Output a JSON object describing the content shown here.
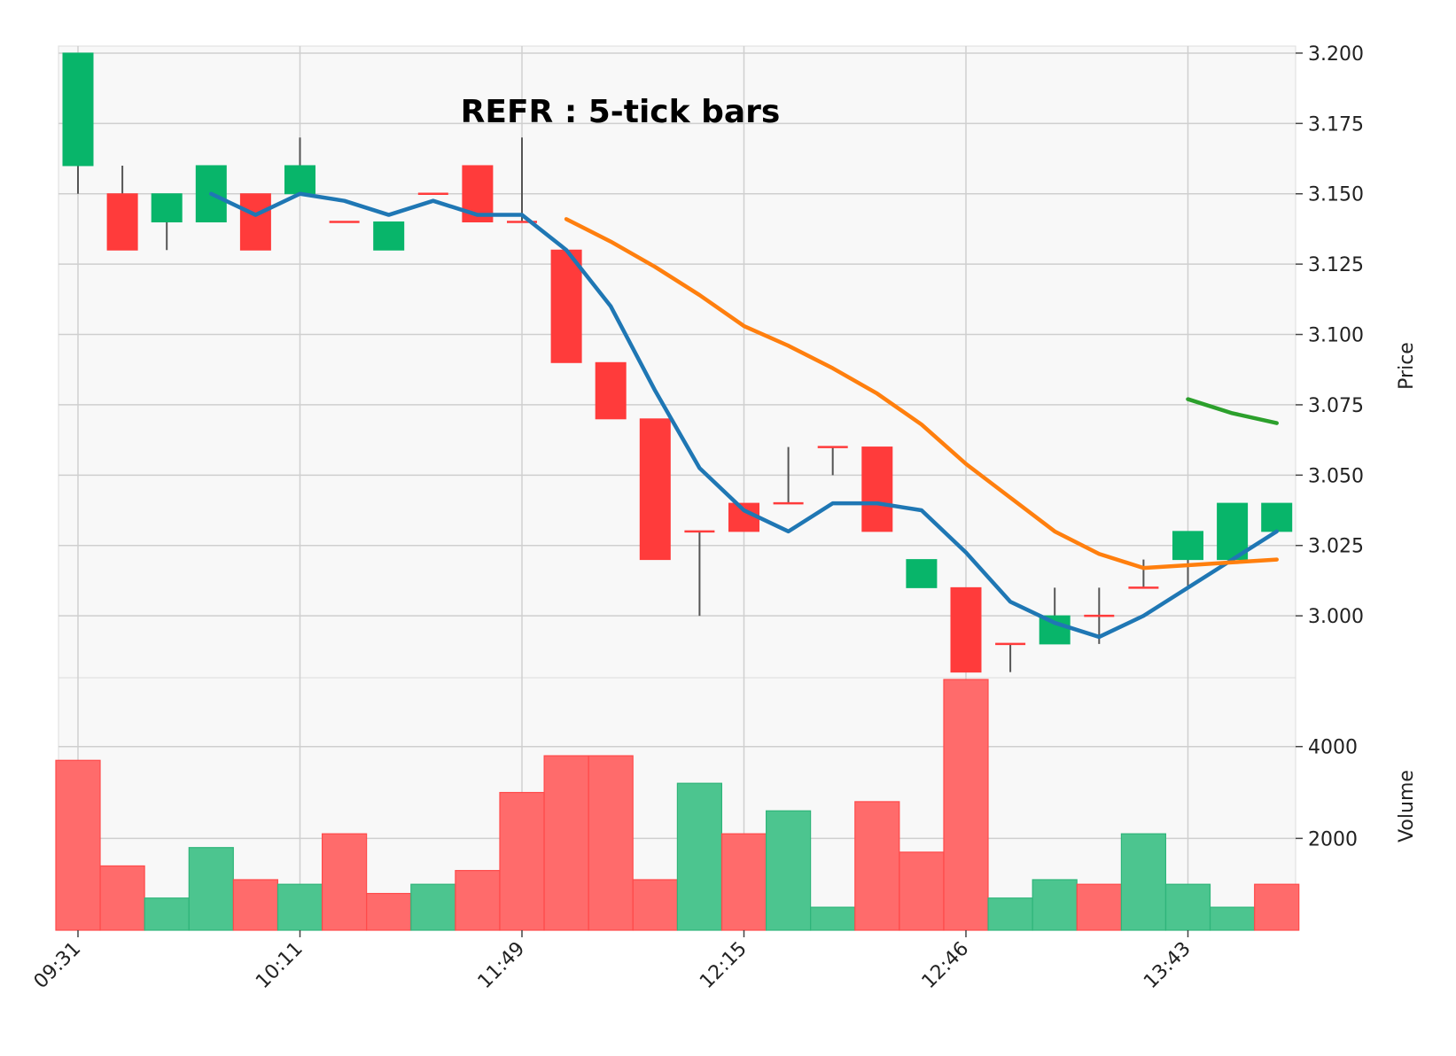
{
  "chart_data": {
    "type": "candlestick",
    "title": "REFR : 5-tick bars",
    "price_ylabel": "Price",
    "volume_ylabel": "Volume",
    "price_ylim": [
      2.978,
      3.2025
    ],
    "price_ticks": [
      "3.200",
      "3.175",
      "3.150",
      "3.125",
      "3.100",
      "3.075",
      "3.050",
      "3.025",
      "3.000"
    ],
    "volume_ylim": [
      0,
      5500
    ],
    "volume_ticks": [
      "4000",
      "2000"
    ],
    "x_tick_labels": [
      "09:31",
      "10:11",
      "11:49",
      "12:15",
      "12:46",
      "13:43"
    ],
    "x_tick_positions": [
      0,
      5,
      10,
      15,
      20,
      25
    ],
    "bar_count": 28,
    "candles": [
      {
        "open": 3.16,
        "high": 3.2,
        "low": 3.15,
        "close": 3.2,
        "volume": 3700
      },
      {
        "open": 3.15,
        "high": 3.16,
        "low": 3.13,
        "close": 3.13,
        "volume": 1400
      },
      {
        "open": 3.14,
        "high": 3.15,
        "low": 3.13,
        "close": 3.15,
        "volume": 700
      },
      {
        "open": 3.14,
        "high": 3.16,
        "low": 3.14,
        "close": 3.16,
        "volume": 1800
      },
      {
        "open": 3.15,
        "high": 3.15,
        "low": 3.13,
        "close": 3.13,
        "volume": 1100
      },
      {
        "open": 3.15,
        "high": 3.17,
        "low": 3.15,
        "close": 3.16,
        "volume": 1000
      },
      {
        "open": 3.14,
        "high": 3.14,
        "low": 3.14,
        "close": 3.14,
        "volume": 2100
      },
      {
        "open": 3.13,
        "high": 3.14,
        "low": 3.13,
        "close": 3.14,
        "volume": 800
      },
      {
        "open": 3.15,
        "high": 3.15,
        "low": 3.15,
        "close": 3.15,
        "volume": 1000
      },
      {
        "open": 3.16,
        "high": 3.16,
        "low": 3.14,
        "close": 3.14,
        "volume": 1300
      },
      {
        "open": 3.14,
        "high": 3.17,
        "low": 3.14,
        "close": 3.14,
        "volume": 3000
      },
      {
        "open": 3.13,
        "high": 3.13,
        "low": 3.09,
        "close": 3.09,
        "volume": 3800
      },
      {
        "open": 3.09,
        "high": 3.09,
        "low": 3.07,
        "close": 3.07,
        "volume": 3800
      },
      {
        "open": 3.07,
        "high": 3.07,
        "low": 3.02,
        "close": 3.02,
        "volume": 1100
      },
      {
        "open": 3.03,
        "high": 3.03,
        "low": 3.0,
        "close": 3.03,
        "volume": 3200
      },
      {
        "open": 3.04,
        "high": 3.04,
        "low": 3.03,
        "close": 3.03,
        "volume": 2100
      },
      {
        "open": 3.04,
        "high": 3.06,
        "low": 3.04,
        "close": 3.04,
        "volume": 2600
      },
      {
        "open": 3.06,
        "high": 3.06,
        "low": 3.05,
        "close": 3.06,
        "volume": 500
      },
      {
        "open": 3.06,
        "high": 3.06,
        "low": 3.03,
        "close": 3.03,
        "volume": 2800
      },
      {
        "open": 3.01,
        "high": 3.02,
        "low": 3.01,
        "close": 3.02,
        "volume": 1700
      },
      {
        "open": 3.01,
        "high": 3.01,
        "low": 2.98,
        "close": 2.98,
        "volume": 5600
      },
      {
        "open": 2.99,
        "high": 2.99,
        "low": 2.98,
        "close": 2.99,
        "volume": 700
      },
      {
        "open": 2.99,
        "high": 3.01,
        "low": 2.99,
        "close": 3.0,
        "volume": 1100
      },
      {
        "open": 3.0,
        "high": 3.01,
        "low": 2.99,
        "close": 3.0,
        "volume": 1000
      },
      {
        "open": 3.01,
        "high": 3.02,
        "low": 3.01,
        "close": 3.01,
        "volume": 2100
      },
      {
        "open": 3.02,
        "high": 3.03,
        "low": 3.01,
        "close": 3.03,
        "volume": 1000
      },
      {
        "open": 3.02,
        "high": 3.04,
        "low": 3.02,
        "close": 3.04,
        "volume": 500
      },
      {
        "open": 3.03,
        "high": 3.04,
        "low": 3.03,
        "close": 3.04,
        "volume": 1000
      }
    ],
    "volume_up": [
      false,
      false,
      true,
      true,
      false,
      true,
      false,
      false,
      true,
      false,
      false,
      false,
      false,
      false,
      true,
      false,
      true,
      true,
      false,
      false,
      false,
      true,
      true,
      false,
      true,
      true,
      true,
      false
    ],
    "moving_averages": [
      {
        "color": "#1f77b4",
        "start_index": 3,
        "values": [
          3.15,
          3.1425,
          3.15,
          3.1475,
          3.1425,
          3.1475,
          3.1425,
          3.1425,
          3.13,
          3.11,
          3.08,
          3.0525,
          3.0375,
          3.03,
          3.04,
          3.04,
          3.0375,
          3.0225,
          3.005,
          2.9975,
          2.9925,
          3.0,
          3.01,
          3.02,
          3.03
        ]
      },
      {
        "color": "#ff7f0e",
        "start_index": 11,
        "values": [
          3.141,
          3.133,
          3.124,
          3.114,
          3.103,
          3.096,
          3.088,
          3.079,
          3.068,
          3.054,
          3.042,
          3.03,
          3.022,
          3.017,
          3.018,
          3.019,
          3.02
        ]
      },
      {
        "color": "#2ca02c",
        "start_index": 25,
        "values": [
          3.077,
          3.072,
          3.0685
        ]
      }
    ],
    "colors": {
      "up": "#08b56a",
      "down": "#ff3b3b",
      "up_volume": "#4cc58f",
      "down_volume": "#ff6b6b",
      "wick": "#555555",
      "panel_bg": "#f8f8f8",
      "grid": "#cfcfcf"
    },
    "grid": true
  }
}
